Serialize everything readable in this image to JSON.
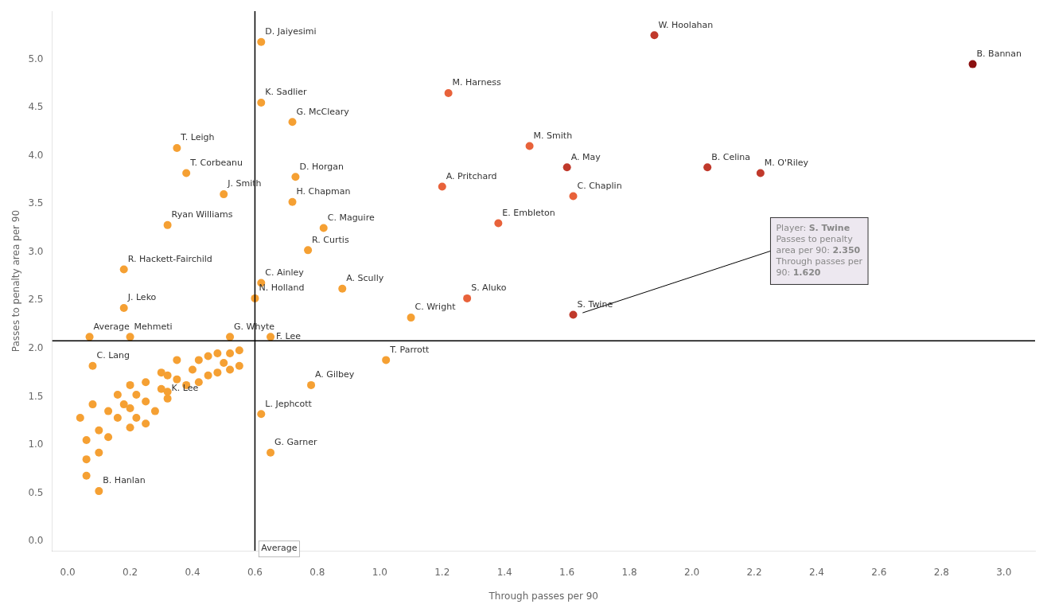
{
  "chart_data": {
    "type": "scatter",
    "x_label": "Through passes per 90",
    "y_label": "Passes to penalty area per 90",
    "xlim": [
      -0.05,
      3.1
    ],
    "ylim": [
      -0.1,
      5.5
    ],
    "xticks": [
      {
        "value": 0.0,
        "label": "0.0"
      },
      0.2,
      0.4,
      0.6,
      0.8,
      {
        "value": 1.0,
        "label": "1.0"
      },
      1.2,
      1.4,
      1.6,
      1.8,
      {
        "value": 2.0,
        "label": "2.0"
      },
      2.2,
      2.4,
      2.6,
      2.8,
      {
        "value": 3.0,
        "label": "3.0"
      }
    ],
    "yticks": [
      {
        "value": 0.0,
        "label": "0.0"
      },
      0.5,
      {
        "value": 1.0,
        "label": "1.0"
      },
      1.5,
      {
        "value": 2.0,
        "label": "2.0"
      },
      2.5,
      {
        "value": 3.0,
        "label": "3.0"
      },
      3.5,
      {
        "value": 4.0,
        "label": "4.0"
      },
      4.5,
      {
        "value": 5.0,
        "label": "5.0"
      }
    ],
    "grid": false,
    "x": [
      0.04,
      0.06,
      0.06,
      0.06,
      0.08,
      0.1,
      0.1,
      0.13,
      0.13,
      0.16,
      0.16,
      0.18,
      0.2,
      0.2,
      0.2,
      0.22,
      0.22,
      0.25,
      0.25,
      0.25,
      0.28,
      0.3,
      0.3,
      0.32,
      0.32,
      0.35,
      0.35,
      0.38,
      0.4,
      0.42,
      0.42,
      0.45,
      0.45,
      0.48,
      0.48,
      0.5,
      0.52,
      0.52,
      0.55,
      0.55,
      0.62,
      0.62,
      0.72,
      1.22,
      0.35,
      0.38,
      0.5,
      0.73,
      0.72,
      0.32,
      1.2,
      0.82,
      0.77,
      1.38,
      0.18,
      0.62,
      0.88,
      0.6,
      1.28,
      0.18,
      1.1,
      0.07,
      0.2,
      0.52,
      0.65,
      1.88,
      1.48,
      1.6,
      1.62,
      2.05,
      2.22,
      2.9,
      1.62,
      0.08,
      1.02,
      0.78,
      0.32,
      0.62,
      0.65,
      0.1
    ],
    "y": [
      1.28,
      1.05,
      0.85,
      0.68,
      1.42,
      1.15,
      0.92,
      1.35,
      1.08,
      1.52,
      1.28,
      1.42,
      1.62,
      1.38,
      1.18,
      1.52,
      1.28,
      1.65,
      1.45,
      1.22,
      1.35,
      1.58,
      1.75,
      1.55,
      1.72,
      1.68,
      1.88,
      1.62,
      1.78,
      1.88,
      1.65,
      1.92,
      1.72,
      1.95,
      1.75,
      1.85,
      1.95,
      1.78,
      1.98,
      1.82,
      5.18,
      4.55,
      4.35,
      4.65,
      4.08,
      3.82,
      3.6,
      3.78,
      3.52,
      3.28,
      3.68,
      3.25,
      3.02,
      3.3,
      2.82,
      2.68,
      2.62,
      2.52,
      2.52,
      2.42,
      2.32,
      2.12,
      2.12,
      2.12,
      2.12,
      5.25,
      4.1,
      3.88,
      3.58,
      3.88,
      3.82,
      4.95,
      2.35,
      1.82,
      1.88,
      1.62,
      1.48,
      1.32,
      0.92,
      0.52
    ],
    "colors": [
      "#F5A033",
      "#F5A033",
      "#F5A033",
      "#F5A033",
      "#F5A033",
      "#F5A033",
      "#F5A033",
      "#F5A033",
      "#F5A033",
      "#F5A033",
      "#F5A033",
      "#F5A033",
      "#F5A033",
      "#F5A033",
      "#F5A033",
      "#F5A033",
      "#F5A033",
      "#F5A033",
      "#F5A033",
      "#F5A033",
      "#F5A033",
      "#F5A033",
      "#F5A033",
      "#F5A033",
      "#F5A033",
      "#F5A033",
      "#F5A033",
      "#F5A033",
      "#F5A033",
      "#F5A033",
      "#F5A033",
      "#F5A033",
      "#F5A033",
      "#F5A033",
      "#F5A033",
      "#F5A033",
      "#F5A033",
      "#F5A033",
      "#F5A033",
      "#F5A033",
      "#F5A033",
      "#F5A033",
      "#F5A033",
      "#E8623A",
      "#F5A033",
      "#F5A033",
      "#F5A033",
      "#F5A033",
      "#F5A033",
      "#F5A033",
      "#E8623A",
      "#F5A033",
      "#F5A033",
      "#E8623A",
      "#F5A033",
      "#F5A033",
      "#F5A033",
      "#F5A033",
      "#E8623A",
      "#F5A033",
      "#F5A033",
      "#F5A033",
      "#F5A033",
      "#F5A033",
      "#F5A033",
      "#C0392B",
      "#E8623A",
      "#C0392B",
      "#E8623A",
      "#C0392B",
      "#C0392B",
      "#8B1010",
      "#C0392B",
      "#F5A033",
      "#F5A033",
      "#F5A033",
      "#F5A033",
      "#F5A033",
      "#F5A033",
      "#F5A033"
    ],
    "point_labels": [
      null,
      null,
      null,
      null,
      null,
      null,
      null,
      null,
      null,
      null,
      null,
      null,
      null,
      null,
      null,
      null,
      null,
      null,
      null,
      null,
      null,
      null,
      null,
      null,
      null,
      null,
      null,
      null,
      null,
      null,
      null,
      null,
      null,
      null,
      null,
      null,
      null,
      null,
      null,
      null,
      "D. Jaiyesimi",
      "K. Sadlier",
      "G. McCleary",
      "M. Harness",
      "T. Leigh",
      "T. Corbeanu",
      "J. Smith",
      "D. Horgan",
      "H. Chapman",
      "Ryan Williams",
      "A. Pritchard",
      "C. Maguire",
      "R. Curtis",
      "E. Embleton",
      "R. Hackett-Fairchild",
      "C. Ainley",
      "A. Scully",
      "N. Holland",
      "S. Aluko",
      "J. Leko",
      "C. Wright",
      "Average",
      "Mehmeti",
      "G. Whyte",
      "F. Lee",
      "W. Hoolahan",
      "M. Smith",
      "A. May",
      "C. Chaplin",
      "B. Celina",
      "M. O'Riley",
      "B. Bannan",
      "S. Twine",
      "C. Lang",
      "T. Parrott",
      "A. Gilbey",
      "K. Lee",
      "L. Jephcott",
      "G. Garner",
      "B. Hanlan"
    ],
    "avg_x": 0.6,
    "avg_y": 2.08,
    "annotations": [
      {
        "text": "Average",
        "x": 0.62,
        "y": -0.08
      },
      {
        "text": "Player: S. Twine\nPasses to penalty\narea per 90: 2.350\nThrough passes per\n90: 1.620",
        "x": 2.27,
        "y": 3.3,
        "arrow_x": 1.65,
        "arrow_y": 2.37
      }
    ]
  }
}
